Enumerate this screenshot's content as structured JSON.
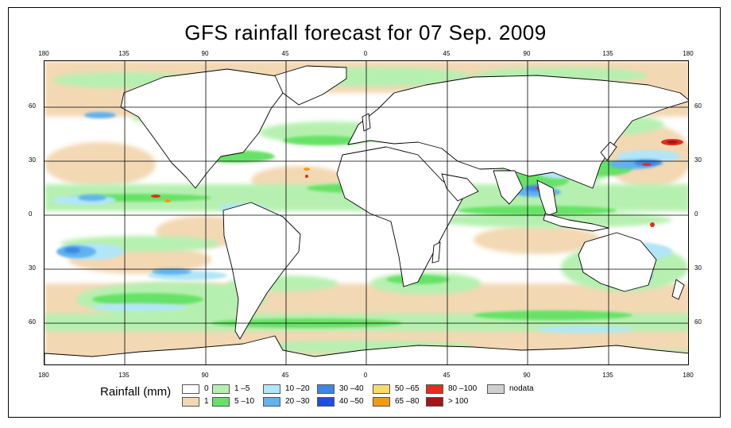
{
  "title": "GFS rainfall forecast for 07 Sep. 2009",
  "lon_ticks": [
    "180",
    "135",
    "90",
    "45",
    "0",
    "45",
    "90",
    "135",
    "180"
  ],
  "lat_ticks": [
    "60",
    "30",
    "0",
    "30",
    "60"
  ],
  "legend": {
    "title": "Rainfall (mm)",
    "items": [
      {
        "label": "0",
        "color": "#ffffff"
      },
      {
        "label": "1",
        "color": "#f3d8b4"
      },
      {
        "label": "1 –5",
        "color": "#b6f0b0"
      },
      {
        "label": "5 –10",
        "color": "#66e266"
      },
      {
        "label": "10 –20",
        "color": "#b2e6f7"
      },
      {
        "label": "20 –30",
        "color": "#5fb2ee"
      },
      {
        "label": "30 –40",
        "color": "#3e86e6"
      },
      {
        "label": "40 –50",
        "color": "#1f4fdc"
      },
      {
        "label": "50 –65",
        "color": "#f7dc6a"
      },
      {
        "label": "65 –80",
        "color": "#f29a18"
      },
      {
        "label": "80 –100",
        "color": "#e0301c"
      },
      {
        "label": "> 100",
        "color": "#a21818"
      },
      {
        "label": "nodata",
        "color": "#cfcfcf"
      }
    ]
  }
}
